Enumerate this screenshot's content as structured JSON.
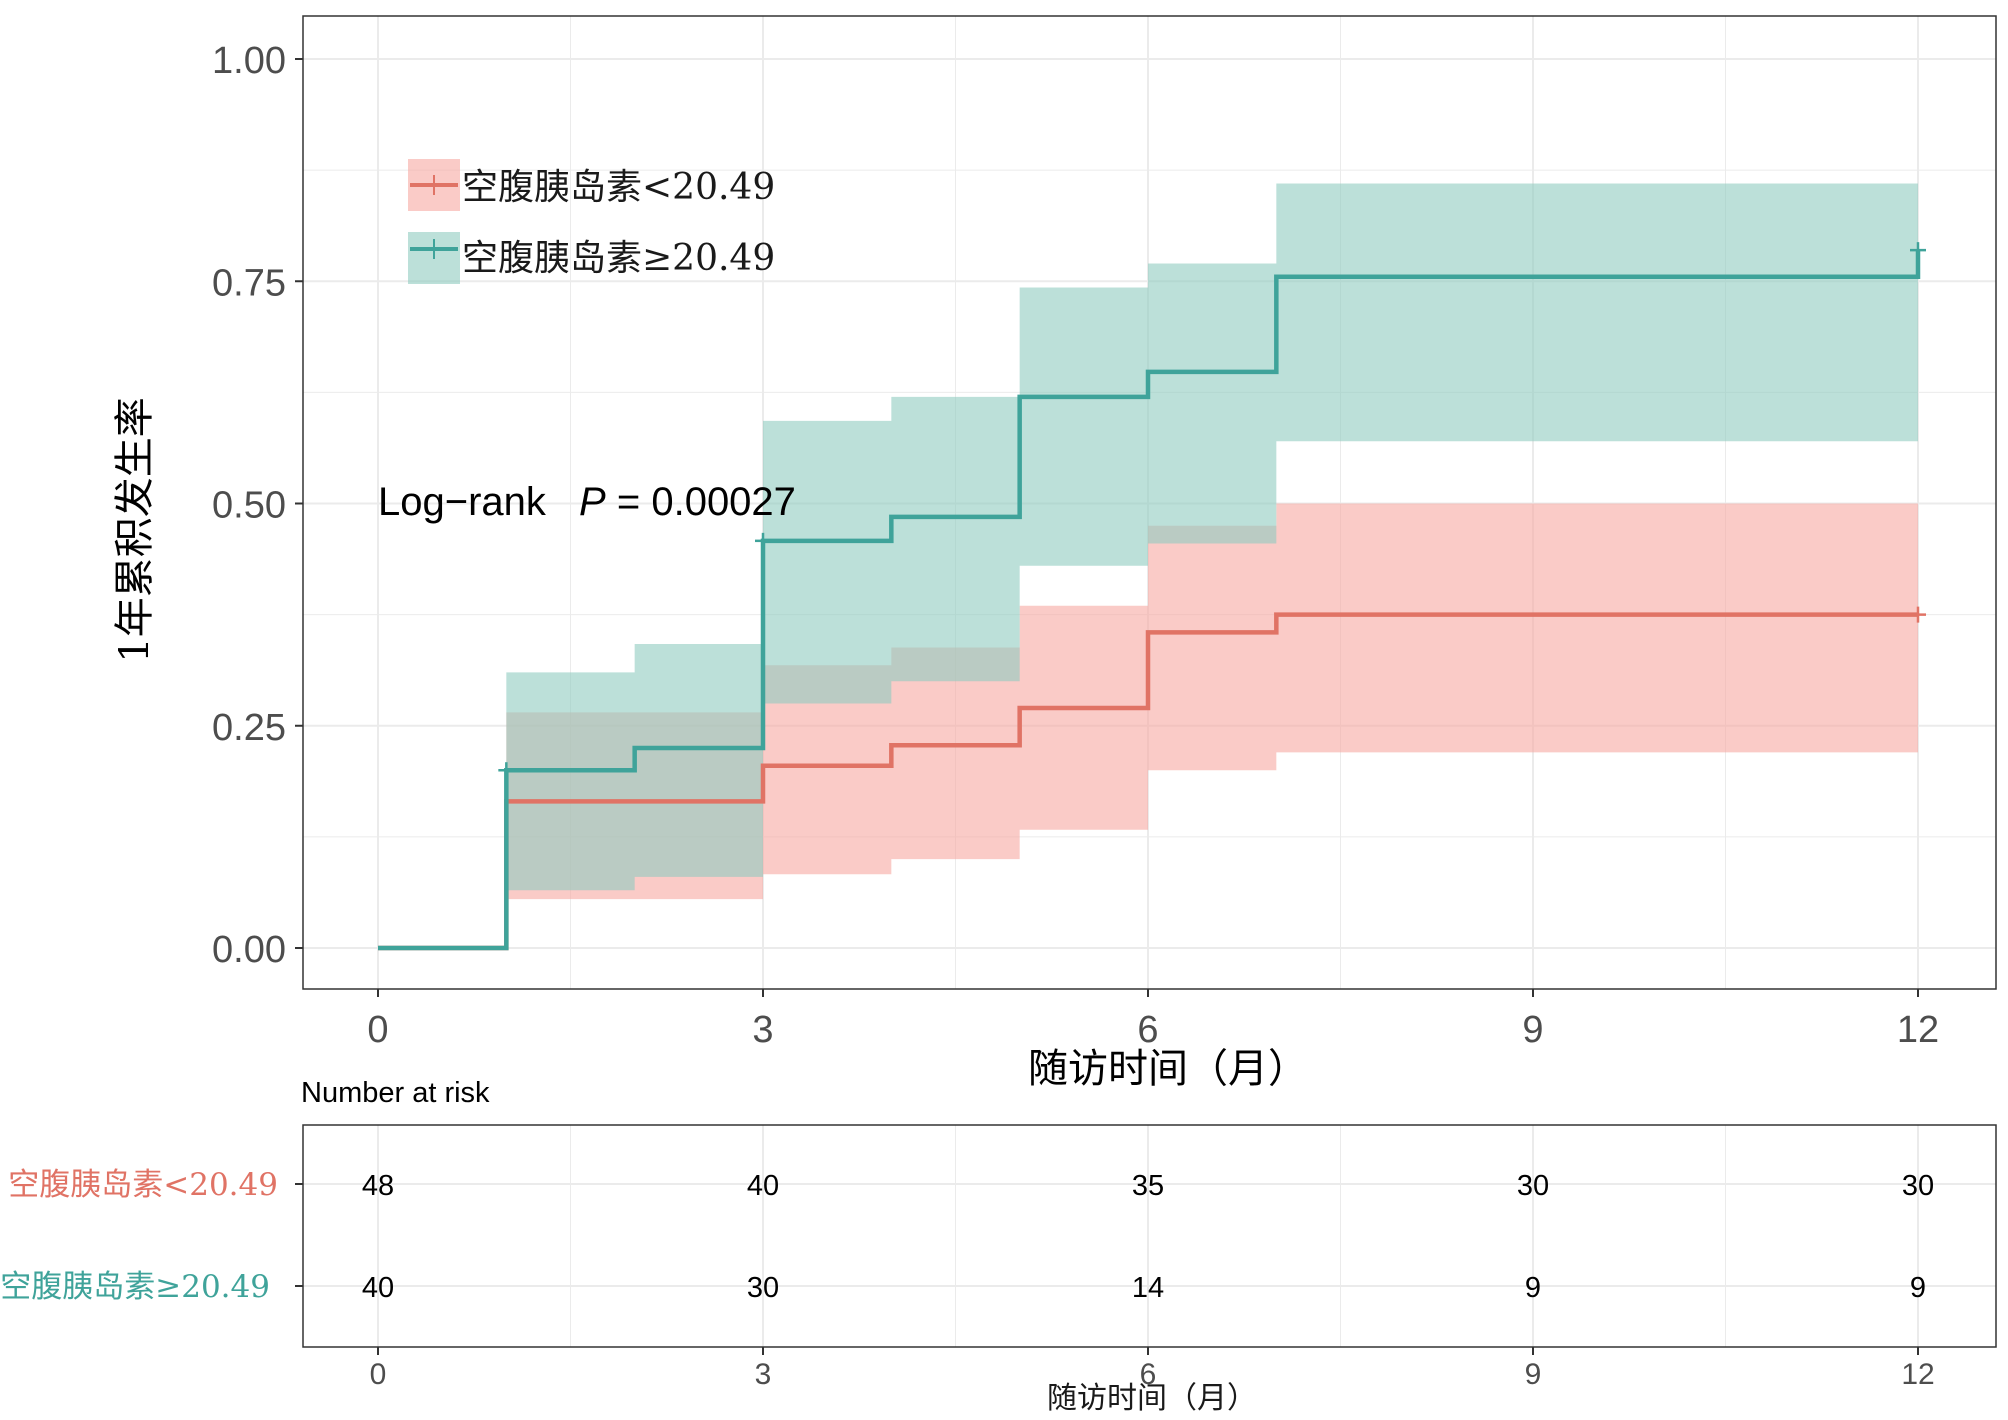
{
  "colors": {
    "group_low": "#E07365",
    "group_high": "#3FA39A",
    "band_low": "#F6A9A2",
    "band_high": "#8FCBC0",
    "grid": "#ebebeb",
    "frame": "#333333",
    "tick_text": "#4d4d4d"
  },
  "chart_data": {
    "type": "line",
    "subtype": "kaplan-meier-cumulative-incidence",
    "title": "",
    "xlabel": "随访时间（月）",
    "ylabel": "1年累积发生率",
    "xlim": [
      0,
      12
    ],
    "ylim": [
      0,
      1
    ],
    "xticks": [
      0,
      3,
      6,
      9,
      12
    ],
    "yticks": [
      0,
      0.25,
      0.5,
      0.75,
      1
    ],
    "yticklabels": [
      "0.00",
      "0.25",
      "0.50",
      "0.75",
      "1.00"
    ],
    "grid": true,
    "legend_position": "top-left",
    "annotation": {
      "prefix": "Log−rank",
      "p_symbol": "P",
      "p_text": " = 0.00027"
    },
    "series": [
      {
        "name": "空腹胰岛素<20.49",
        "color_key": "group_low",
        "steps": [
          [
            0,
            0
          ],
          [
            1,
            0.165
          ],
          [
            3,
            0.205
          ],
          [
            4,
            0.228
          ],
          [
            5,
            0.27
          ],
          [
            6,
            0.355
          ],
          [
            7,
            0.375
          ],
          [
            12,
            0.375
          ]
        ],
        "ci_lower": [
          [
            1,
            0.055
          ],
          [
            2,
            0.055
          ],
          [
            3,
            0.083
          ],
          [
            4,
            0.1
          ],
          [
            5,
            0.133
          ],
          [
            6,
            0.2
          ],
          [
            7,
            0.22
          ],
          [
            12,
            0.22
          ]
        ],
        "ci_upper": [
          [
            1,
            0.265
          ],
          [
            2,
            0.265
          ],
          [
            3,
            0.318
          ],
          [
            4,
            0.338
          ],
          [
            5,
            0.385
          ],
          [
            6,
            0.475
          ],
          [
            7,
            0.5
          ],
          [
            12,
            0.5
          ]
        ],
        "censor_marks": [
          [
            12,
            0.375
          ]
        ]
      },
      {
        "name": "空腹胰岛素≥20.49",
        "color_key": "group_high",
        "steps": [
          [
            0,
            0
          ],
          [
            1,
            0.2
          ],
          [
            2,
            0.225
          ],
          [
            3,
            0.458
          ],
          [
            4,
            0.485
          ],
          [
            5,
            0.62
          ],
          [
            6,
            0.648
          ],
          [
            7,
            0.755
          ],
          [
            12,
            0.755
          ],
          [
            12,
            0.785
          ]
        ],
        "ci_lower": [
          [
            1,
            0.065
          ],
          [
            2,
            0.08
          ],
          [
            3,
            0.275
          ],
          [
            4,
            0.3
          ],
          [
            5,
            0.43
          ],
          [
            6,
            0.455
          ],
          [
            7,
            0.57
          ],
          [
            12,
            0.57
          ]
        ],
        "ci_upper": [
          [
            1,
            0.31
          ],
          [
            2,
            0.342
          ],
          [
            3,
            0.593
          ],
          [
            4,
            0.62
          ],
          [
            5,
            0.743
          ],
          [
            6,
            0.77
          ],
          [
            7,
            0.86
          ],
          [
            12,
            0.86
          ]
        ],
        "censor_marks": [
          [
            1,
            0.2
          ],
          [
            3,
            0.458
          ],
          [
            12,
            0.785
          ]
        ]
      }
    ],
    "risk_table": {
      "title": "Number at risk",
      "xlabel": "随访时间（月）",
      "times": [
        0,
        3,
        6,
        9,
        12
      ],
      "rows": [
        {
          "label": "空腹胰岛素<20.49",
          "color_key": "group_low",
          "values": [
            48,
            40,
            35,
            30,
            30
          ]
        },
        {
          "label": "空腹胰岛素≥20.49",
          "color_key": "group_high",
          "values": [
            40,
            30,
            14,
            9,
            9
          ]
        }
      ]
    }
  }
}
